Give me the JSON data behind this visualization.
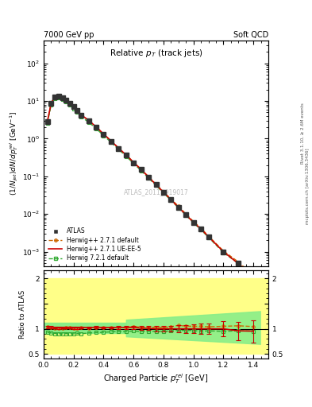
{
  "title_top_left": "7000 GeV pp",
  "title_top_right": "Soft QCD",
  "plot_title": "Relative $p_T$ (track jets)",
  "xlabel": "Charged Particle $p_T^{rel}$ [GeV]",
  "ylabel": "$(1/N_{jet})dN/dp_T^{rel}$ [GeV$^{-1}$]",
  "ylabel_ratio": "Ratio to ATLAS",
  "watermark": "ATLAS_2011_I919017",
  "rivet_label": "Rivet 3.1.10, ≥ 2.6M events",
  "mcplots_label": "mcplots.cern.ch [arXiv:1306.3436]",
  "xlim": [
    0.0,
    1.5
  ],
  "ylim_main": [
    0.0004,
    400.0
  ],
  "ylim_ratio": [
    0.42,
    2.15
  ],
  "atlas_x": [
    0.025,
    0.05,
    0.075,
    0.1,
    0.125,
    0.15,
    0.175,
    0.2,
    0.225,
    0.25,
    0.3,
    0.35,
    0.4,
    0.45,
    0.5,
    0.55,
    0.6,
    0.65,
    0.7,
    0.75,
    0.8,
    0.85,
    0.9,
    0.95,
    1.0,
    1.05,
    1.1,
    1.2,
    1.3,
    1.4
  ],
  "atlas_y": [
    2.8,
    8.5,
    13.0,
    13.5,
    12.0,
    10.5,
    8.5,
    7.0,
    5.5,
    4.2,
    3.0,
    2.0,
    1.3,
    0.85,
    0.55,
    0.36,
    0.23,
    0.15,
    0.095,
    0.06,
    0.038,
    0.024,
    0.015,
    0.0095,
    0.006,
    0.004,
    0.0025,
    0.001,
    0.0005,
    0.00022
  ],
  "atlas_yerr": [
    0.15,
    0.35,
    0.45,
    0.5,
    0.45,
    0.4,
    0.32,
    0.26,
    0.2,
    0.16,
    0.11,
    0.075,
    0.048,
    0.032,
    0.02,
    0.013,
    0.008,
    0.005,
    0.0035,
    0.0022,
    0.0014,
    0.0009,
    0.00055,
    0.00035,
    0.00022,
    0.00015,
    9e-05,
    4e-05,
    2e-05,
    9e-06
  ],
  "hw271_x": [
    0.025,
    0.05,
    0.075,
    0.1,
    0.125,
    0.15,
    0.175,
    0.2,
    0.225,
    0.25,
    0.3,
    0.35,
    0.4,
    0.45,
    0.5,
    0.55,
    0.6,
    0.65,
    0.7,
    0.75,
    0.8,
    0.85,
    0.9,
    0.95,
    1.0,
    1.05,
    1.1,
    1.2,
    1.3,
    1.4
  ],
  "hw271_y": [
    2.9,
    8.7,
    13.2,
    13.7,
    12.2,
    10.7,
    8.7,
    7.1,
    5.6,
    4.3,
    3.05,
    2.05,
    1.33,
    0.87,
    0.56,
    0.37,
    0.24,
    0.155,
    0.098,
    0.062,
    0.039,
    0.025,
    0.016,
    0.01,
    0.0063,
    0.0042,
    0.0026,
    0.00105,
    0.00053,
    0.00023
  ],
  "hw271ue_x": [
    0.025,
    0.05,
    0.075,
    0.1,
    0.125,
    0.15,
    0.175,
    0.2,
    0.225,
    0.25,
    0.3,
    0.35,
    0.4,
    0.45,
    0.5,
    0.55,
    0.6,
    0.65,
    0.7,
    0.75,
    0.8,
    0.85,
    0.9,
    0.95,
    1.0,
    1.05,
    1.1,
    1.2,
    1.3,
    1.4
  ],
  "hw271ue_y": [
    2.9,
    8.8,
    13.3,
    13.8,
    12.3,
    10.8,
    8.75,
    7.15,
    5.62,
    4.32,
    3.07,
    2.06,
    1.33,
    0.87,
    0.564,
    0.37,
    0.236,
    0.152,
    0.096,
    0.06,
    0.038,
    0.024,
    0.015,
    0.0095,
    0.006,
    0.004,
    0.0025,
    0.001,
    0.00048,
    0.00021
  ],
  "hw721_x": [
    0.025,
    0.05,
    0.075,
    0.1,
    0.125,
    0.15,
    0.175,
    0.2,
    0.225,
    0.25,
    0.3,
    0.35,
    0.4,
    0.45,
    0.5,
    0.55,
    0.6,
    0.65,
    0.7,
    0.75,
    0.8,
    0.85,
    0.9,
    0.95,
    1.0,
    1.05,
    1.1,
    1.2,
    1.3,
    1.4
  ],
  "hw721_y": [
    2.6,
    7.8,
    11.8,
    12.2,
    10.8,
    9.5,
    7.7,
    6.3,
    5.0,
    3.8,
    2.75,
    1.85,
    1.21,
    0.8,
    0.52,
    0.34,
    0.22,
    0.142,
    0.09,
    0.057,
    0.036,
    0.023,
    0.0145,
    0.0092,
    0.0058,
    0.0038,
    0.0024,
    0.00095,
    0.00048,
    0.00021
  ],
  "ratio_hw271_y": [
    1.036,
    1.024,
    1.015,
    1.015,
    1.017,
    1.019,
    1.024,
    1.014,
    1.018,
    1.024,
    1.017,
    1.025,
    1.023,
    1.024,
    1.018,
    1.028,
    1.043,
    1.033,
    1.032,
    1.033,
    1.026,
    1.042,
    1.067,
    1.053,
    1.05,
    1.05,
    1.04,
    1.05,
    1.06,
    1.045
  ],
  "ratio_hw271ue_y": [
    1.036,
    1.035,
    1.023,
    1.022,
    1.025,
    1.029,
    1.029,
    1.021,
    1.022,
    1.029,
    1.023,
    1.03,
    1.023,
    1.024,
    1.025,
    1.028,
    1.026,
    1.013,
    1.011,
    1.0,
    1.0,
    1.0,
    1.0,
    1.0,
    1.0,
    1.0,
    1.0,
    1.0,
    0.96,
    0.955
  ],
  "ratio_hw271ue_yerr": [
    0.02,
    0.02,
    0.02,
    0.02,
    0.02,
    0.02,
    0.02,
    0.02,
    0.02,
    0.02,
    0.02,
    0.02,
    0.02,
    0.02,
    0.03,
    0.03,
    0.03,
    0.04,
    0.04,
    0.05,
    0.05,
    0.06,
    0.07,
    0.08,
    0.09,
    0.1,
    0.1,
    0.15,
    0.18,
    0.22
  ],
  "ratio_hw721_y": [
    0.929,
    0.918,
    0.908,
    0.904,
    0.9,
    0.905,
    0.906,
    0.9,
    0.909,
    0.905,
    0.917,
    0.925,
    0.931,
    0.941,
    0.945,
    0.944,
    0.957,
    0.947,
    0.947,
    0.95,
    0.947,
    0.958,
    0.967,
    0.968,
    0.967,
    0.95,
    0.96,
    0.95,
    0.96,
    0.955
  ],
  "color_atlas": "#333333",
  "color_hw271": "#cc6600",
  "color_hw271ue": "#cc0000",
  "color_hw721": "#33aa33",
  "bg_yellow": "#ffff88",
  "bg_green": "#88ee88"
}
